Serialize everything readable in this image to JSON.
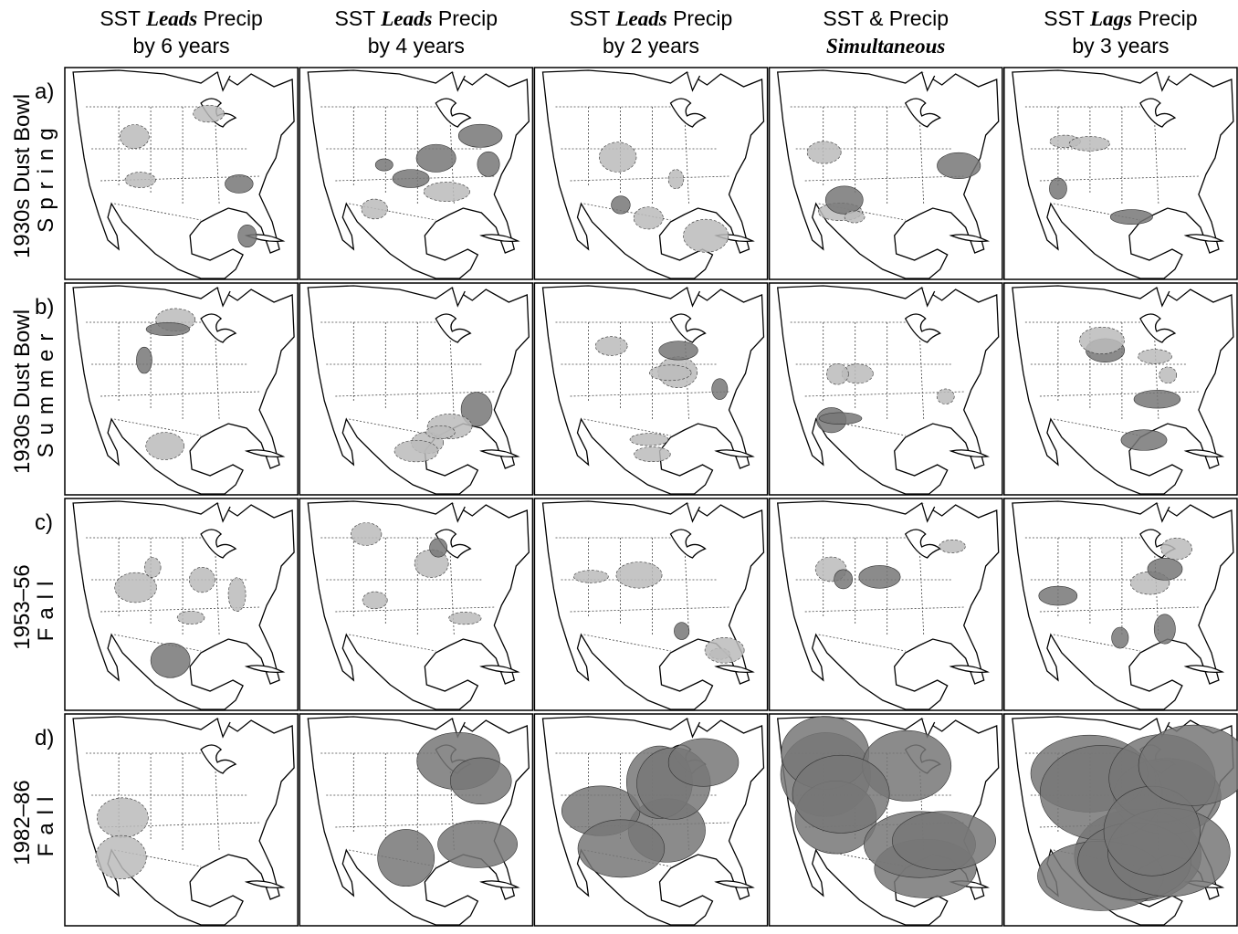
{
  "columns": [
    {
      "lines": [
        [
          {
            "text": "SST"
          },
          {
            "text": "Leads",
            "em": true
          },
          {
            "text": "Precip"
          }
        ],
        [
          {
            "text": "by 6 years"
          }
        ]
      ]
    },
    {
      "lines": [
        [
          {
            "text": "SST"
          },
          {
            "text": "Leads",
            "em": true
          },
          {
            "text": "Precip"
          }
        ],
        [
          {
            "text": "by 4 years"
          }
        ]
      ]
    },
    {
      "lines": [
        [
          {
            "text": "SST"
          },
          {
            "text": "Leads",
            "em": true
          },
          {
            "text": "Precip"
          }
        ],
        [
          {
            "text": "by 2 years"
          }
        ]
      ]
    },
    {
      "lines": [
        [
          {
            "text": "SST & Precip"
          }
        ],
        [
          {
            "text": "Simultaneous",
            "em": true
          }
        ]
      ]
    },
    {
      "lines": [
        [
          {
            "text": "SST"
          },
          {
            "text": "Lags",
            "em": true
          },
          {
            "text": "Precip"
          }
        ],
        [
          {
            "text": "by 3 years"
          }
        ]
      ]
    }
  ],
  "rows": [
    {
      "letter": "a)",
      "title": "1930s Dust Bowl",
      "season": "Spring"
    },
    {
      "letter": "b)",
      "title": "1930s Dust Bowl",
      "season": "Summer"
    },
    {
      "letter": "c)",
      "title": "1953–56",
      "season": "Fall"
    },
    {
      "letter": "d)",
      "title": "1982–86",
      "season": "Fall"
    }
  ]
}
